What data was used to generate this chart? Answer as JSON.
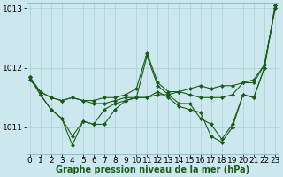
{
  "title": "Graphe pression niveau de la mer (hPa)",
  "background_color": "#cce8ee",
  "grid_color": "#aad0d8",
  "line_color": "#1a5c1a",
  "series": [
    {
      "x": [
        0,
        1,
        2,
        3,
        4,
        5,
        6,
        7,
        8,
        9,
        10,
        11,
        12,
        13,
        14,
        15,
        16,
        17,
        18,
        19,
        20,
        21,
        22,
        23
      ],
      "y": [
        1011.8,
        1011.6,
        1011.5,
        1011.45,
        1011.5,
        1011.45,
        1011.4,
        1011.4,
        1011.45,
        1011.5,
        1011.5,
        1011.5,
        1011.55,
        1011.55,
        1011.6,
        1011.65,
        1011.7,
        1011.65,
        1011.7,
        1011.7,
        1011.75,
        1011.8,
        1012.05,
        1013.0
      ]
    },
    {
      "x": [
        0,
        1,
        2,
        3,
        4,
        5,
        6,
        7,
        8,
        9,
        10,
        11,
        12,
        13,
        14,
        15,
        16,
        17,
        18,
        19,
        20,
        21,
        22,
        23
      ],
      "y": [
        1011.85,
        1011.6,
        1011.5,
        1011.45,
        1011.5,
        1011.45,
        1011.45,
        1011.5,
        1011.5,
        1011.55,
        1011.65,
        1012.25,
        1011.75,
        1011.6,
        1011.6,
        1011.55,
        1011.5,
        1011.5,
        1011.5,
        1011.55,
        1011.75,
        1011.75,
        1012.05,
        1013.0
      ]
    },
    {
      "x": [
        0,
        1,
        2,
        3,
        4,
        5,
        6,
        7,
        8,
        9,
        10,
        11,
        12,
        13,
        14,
        15,
        16,
        17,
        18,
        19,
        20,
        21,
        22,
        23
      ],
      "y": [
        1011.85,
        1011.55,
        1011.3,
        1011.15,
        1010.7,
        1011.1,
        1011.05,
        1011.05,
        1011.3,
        1011.45,
        1011.5,
        1012.2,
        1011.7,
        1011.55,
        1011.4,
        1011.4,
        1011.15,
        1011.05,
        1010.8,
        1011.05,
        1011.55,
        1011.5,
        1012.0,
        1013.05
      ]
    },
    {
      "x": [
        0,
        1,
        2,
        3,
        4,
        5,
        6,
        7,
        8,
        9,
        10,
        11,
        12,
        13,
        14,
        15,
        16,
        17,
        18,
        19,
        20,
        21,
        22,
        23
      ],
      "y": [
        1011.85,
        1011.55,
        1011.3,
        1011.15,
        1010.85,
        1011.1,
        1011.05,
        1011.3,
        1011.4,
        1011.45,
        1011.5,
        1011.5,
        1011.6,
        1011.5,
        1011.35,
        1011.3,
        1011.25,
        1010.85,
        1010.75,
        1011.0,
        1011.55,
        1011.5,
        1012.0,
        1013.05
      ]
    }
  ],
  "ylim": [
    1010.55,
    1013.1
  ],
  "yticks": [
    1011,
    1012,
    1013
  ],
  "xlim": [
    -0.3,
    23.3
  ],
  "xticks": [
    0,
    1,
    2,
    3,
    4,
    5,
    6,
    7,
    8,
    9,
    10,
    11,
    12,
    13,
    14,
    15,
    16,
    17,
    18,
    19,
    20,
    21,
    22,
    23
  ],
  "tick_fontsize": 6.5,
  "title_fontsize": 7.0,
  "marker": "D",
  "marker_size": 2.0,
  "line_width": 0.8
}
